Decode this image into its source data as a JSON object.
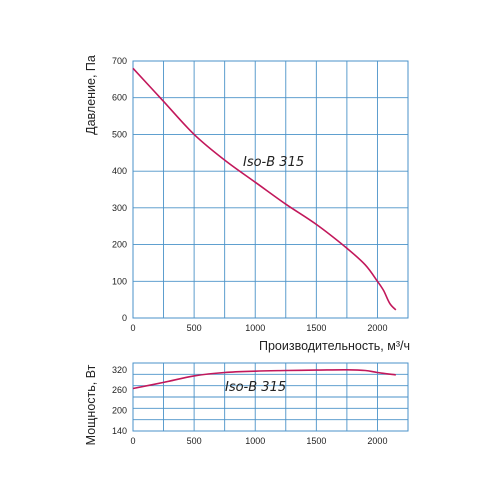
{
  "chart_data": [
    {
      "type": "line",
      "xlabel": "Производительность, м³/ч",
      "ylabel": "Давление, Па",
      "xlim": [
        0,
        2250
      ],
      "ylim": [
        0,
        700
      ],
      "xticks": [
        0,
        500,
        1000,
        1500,
        2000
      ],
      "yticks": [
        0,
        100,
        200,
        300,
        400,
        500,
        600,
        700
      ],
      "grid": true,
      "grid_color": "#4a92c8",
      "series": [
        {
          "name": "Iso-B 315",
          "color": "#c2185b",
          "x": [
            0,
            250,
            500,
            750,
            1000,
            1250,
            1500,
            1750,
            1900,
            2000,
            2050,
            2100,
            2150
          ],
          "y": [
            680,
            590,
            500,
            430,
            370,
            310,
            255,
            190,
            145,
            100,
            75,
            40,
            22
          ]
        }
      ]
    },
    {
      "type": "line",
      "xlabel": "",
      "ylabel": "Мощность, Вт",
      "xlim": [
        0,
        2250
      ],
      "ylim": [
        140,
        340
      ],
      "xticks": [
        0,
        500,
        1000,
        1500,
        2000
      ],
      "yticks": [
        140,
        200,
        260,
        320
      ],
      "grid": true,
      "grid_color": "#4a92c8",
      "series": [
        {
          "name": "Iso-B 315",
          "color": "#c2185b",
          "x": [
            0,
            250,
            500,
            750,
            1000,
            1250,
            1500,
            1750,
            1900,
            2000,
            2150
          ],
          "y": [
            265,
            283,
            302,
            312,
            316,
            318,
            319,
            320,
            318,
            312,
            305
          ]
        }
      ]
    }
  ]
}
